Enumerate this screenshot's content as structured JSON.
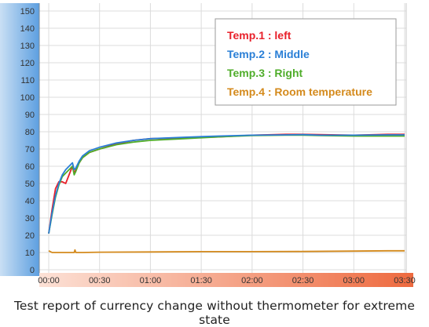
{
  "caption": "Test report of currency change without thermometer for extreme state",
  "chart_data": {
    "type": "line",
    "title": "",
    "xlabel": "",
    "ylabel": "",
    "x_ticks": [
      "00:00",
      "00:30",
      "01:00",
      "01:30",
      "02:00",
      "02:30",
      "03:00",
      "03:30"
    ],
    "y_ticks": [
      0,
      10,
      20,
      30,
      40,
      50,
      60,
      70,
      80,
      90,
      100,
      110,
      120,
      130,
      140,
      150
    ],
    "xlim_minutes": [
      0,
      210
    ],
    "ylim": [
      0,
      150
    ],
    "grid": true,
    "legend_position": "top-right",
    "series": [
      {
        "name": "Temp.1 : left",
        "color": "#e8202a",
        "x_minutes": [
          0,
          2,
          4,
          6,
          8,
          10,
          12,
          14,
          15,
          16,
          18,
          20,
          24,
          30,
          40,
          50,
          60,
          80,
          100,
          120,
          140,
          150,
          160,
          180,
          200,
          210
        ],
        "values": [
          21,
          35,
          47,
          51,
          51,
          50,
          55,
          60,
          56,
          58,
          62,
          65,
          68,
          70,
          73,
          75,
          76,
          76.5,
          77,
          78,
          78.5,
          78.5,
          78.3,
          78,
          78.5,
          78.5
        ]
      },
      {
        "name": "Temp.2 : Middle",
        "color": "#2a7fd6",
        "x_minutes": [
          0,
          2,
          4,
          6,
          8,
          10,
          12,
          14,
          15,
          16,
          18,
          20,
          24,
          30,
          40,
          50,
          60,
          80,
          100,
          120,
          140,
          150,
          160,
          180,
          200,
          210
        ],
        "values": [
          21,
          33,
          43,
          50,
          55,
          58,
          60,
          62,
          58,
          59,
          63,
          66,
          69,
          71,
          73.5,
          75,
          76,
          76.8,
          77.5,
          78,
          78.2,
          78.3,
          78,
          78,
          78.2,
          78.2
        ]
      },
      {
        "name": "Temp.3 : Right",
        "color": "#4fad2a",
        "x_minutes": [
          0,
          2,
          4,
          6,
          8,
          10,
          12,
          14,
          15,
          16,
          18,
          20,
          24,
          30,
          40,
          50,
          60,
          80,
          100,
          120,
          140,
          150,
          160,
          180,
          200,
          210
        ],
        "values": [
          21,
          32,
          42,
          49,
          54,
          56,
          58,
          60,
          55,
          57,
          62,
          65,
          68,
          70,
          72.5,
          74,
          75,
          76,
          77,
          77.8,
          78,
          78,
          77.8,
          77.5,
          77.5,
          77.5
        ]
      },
      {
        "name": "Temp.4 : Room temperature",
        "color": "#d48a1c",
        "x_minutes": [
          0,
          1,
          2,
          5,
          10,
          15,
          15.5,
          16,
          20,
          30,
          60,
          90,
          120,
          150,
          180,
          200,
          210
        ],
        "values": [
          11,
          10.5,
          10,
          10,
          10,
          10,
          11.5,
          10,
          10,
          10.2,
          10.3,
          10.5,
          10.5,
          10.6,
          10.8,
          11,
          11
        ]
      }
    ]
  }
}
